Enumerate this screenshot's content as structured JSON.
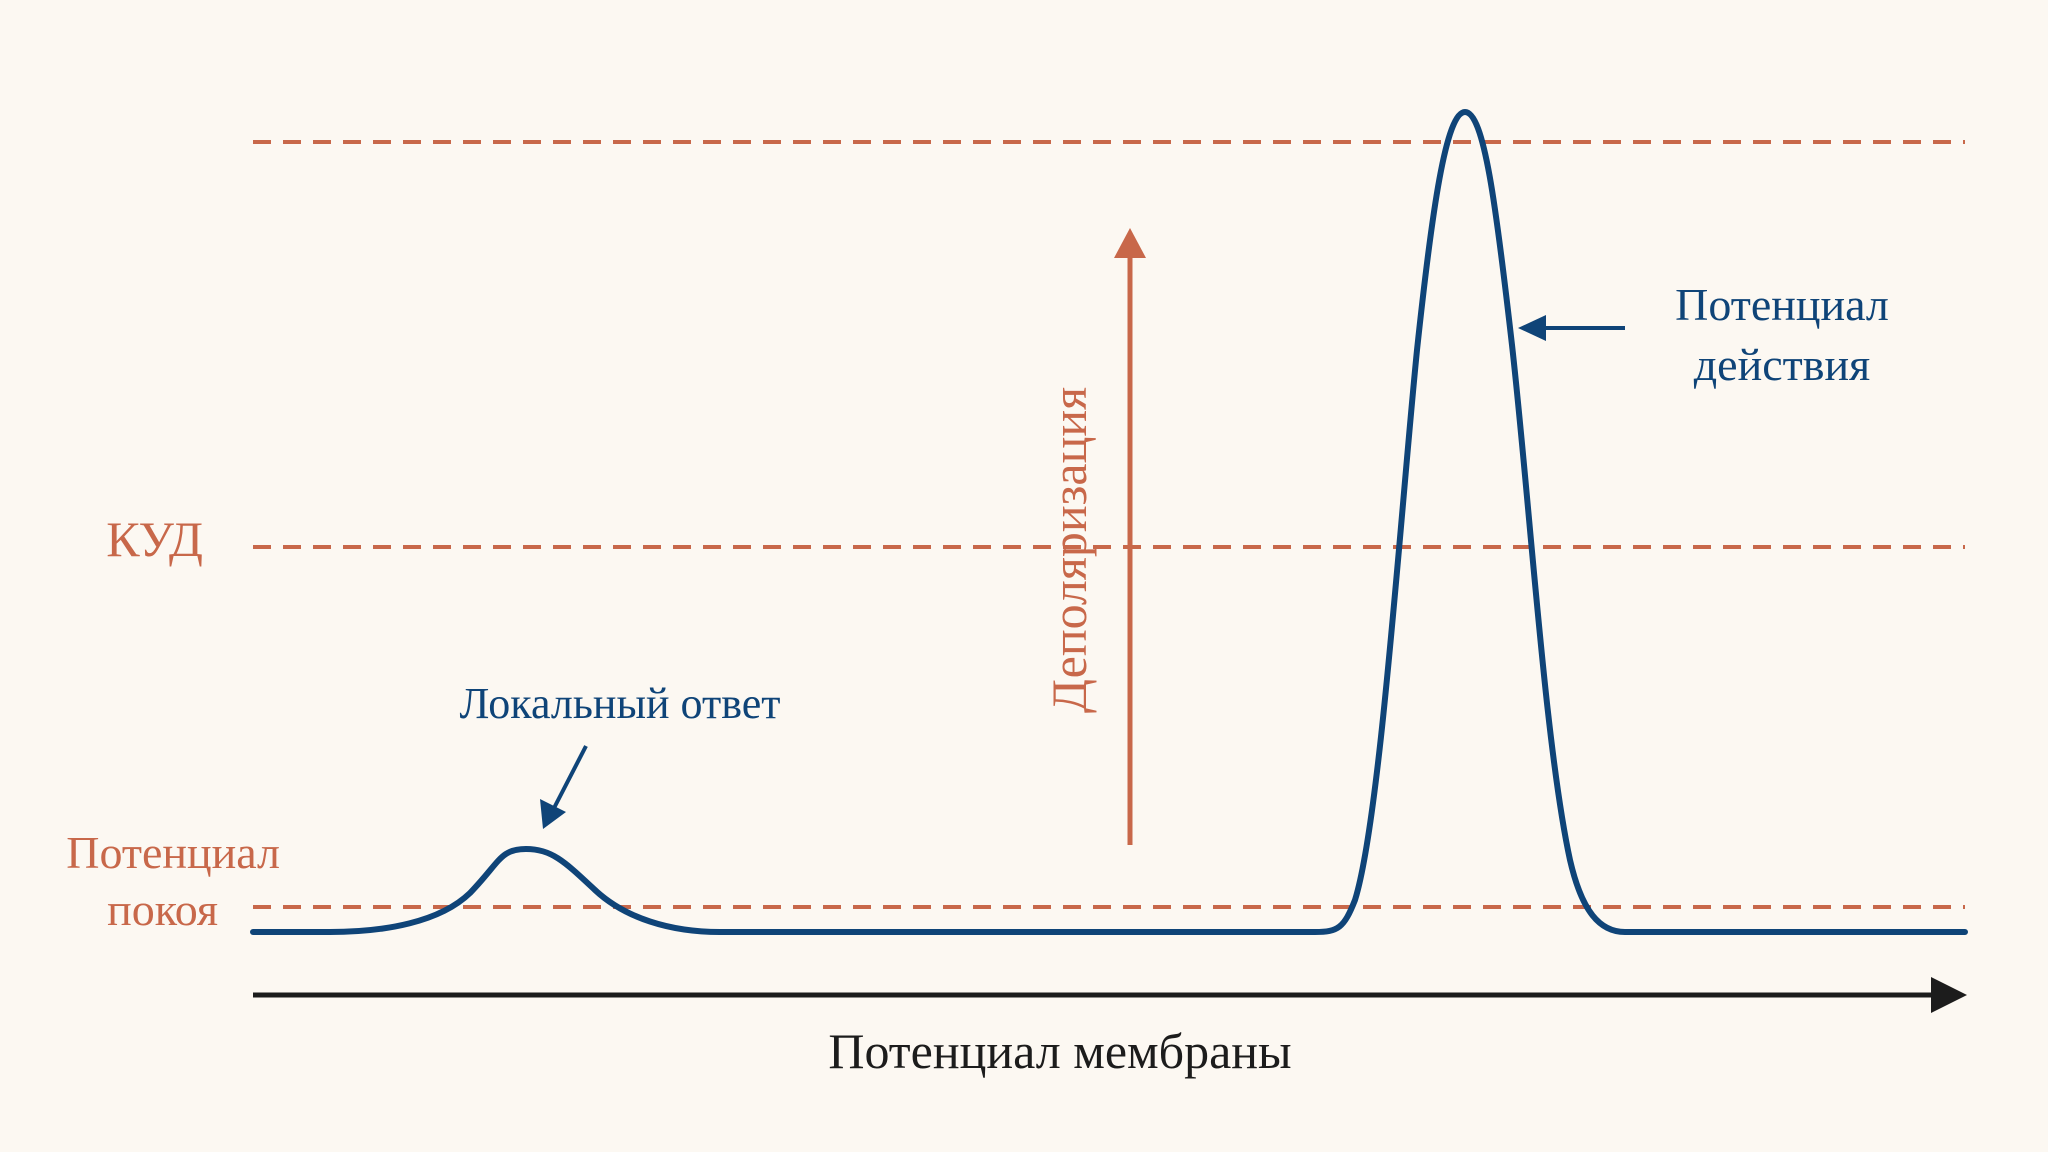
{
  "colors": {
    "background": "#fcf8f2",
    "accent_orange": "#c8684a",
    "curve_blue": "#0f4478",
    "axis_black": "#1c1c1c"
  },
  "labels": {
    "threshold": "КУД",
    "resting_line1": "Потенциал",
    "resting_line2": "покоя",
    "local_response": "Локальный ответ",
    "action_potential_line1": "Потенциал",
    "action_potential_line2": "действия",
    "depolarization": "Деполяризация",
    "x_axis": "Потенциал мембраны"
  },
  "icons": {
    "axis_arrow": "arrow-right-icon",
    "depolarization_arrow": "arrow-up-icon",
    "local_pointer": "arrow-down-left-icon",
    "action_pointer": "arrow-left-icon"
  }
}
